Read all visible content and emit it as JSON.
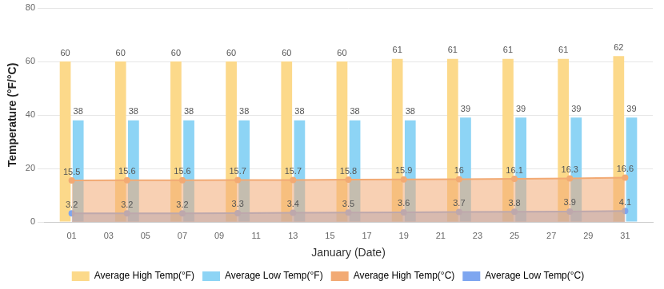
{
  "chart_data": {
    "type": "bar",
    "x_label": "January (Date)",
    "y_label": "Temperature (°F/°C)",
    "x": [
      1,
      4,
      7,
      10,
      13,
      16,
      19,
      22,
      25,
      28,
      31
    ],
    "xlim": [
      -0.5,
      32.5
    ],
    "xticks": [
      {
        "value": 1,
        "label": "01"
      },
      {
        "value": 3,
        "label": "03"
      },
      {
        "value": 5,
        "label": "05"
      },
      {
        "value": 7,
        "label": "07"
      },
      {
        "value": 9,
        "label": "09"
      },
      11,
      13,
      15,
      17,
      19,
      21,
      23,
      25,
      27,
      29,
      31
    ],
    "ylim": [
      0,
      80
    ],
    "yticks": [
      0,
      20,
      40,
      60,
      80
    ],
    "grid": true,
    "legend": "bottom",
    "data_labels": true,
    "series": [
      {
        "name": "Average High Temp(°F)",
        "type": "bar",
        "color": "#fcd98a",
        "values": [
          60,
          60,
          60,
          60,
          60,
          60,
          61,
          61,
          61,
          61,
          62
        ]
      },
      {
        "name": "Average Low Temp(°F)",
        "type": "bar",
        "color": "#8dd4f5",
        "values": [
          38,
          38,
          38,
          38,
          38,
          38,
          38,
          39,
          39,
          39,
          39
        ]
      },
      {
        "name": "Average High Temp(°C)",
        "type": "line",
        "color": "#f2aa74",
        "values": [
          15.5,
          15.6,
          15.6,
          15.7,
          15.7,
          15.8,
          15.9,
          16,
          16.1,
          16.3,
          16.6
        ]
      },
      {
        "name": "Average Low Temp(°C)",
        "type": "line",
        "color": "#7ea6f0",
        "values": [
          3.2,
          3.2,
          3.2,
          3.3,
          3.4,
          3.5,
          3.6,
          3.7,
          3.8,
          3.9,
          4.1
        ]
      }
    ]
  }
}
